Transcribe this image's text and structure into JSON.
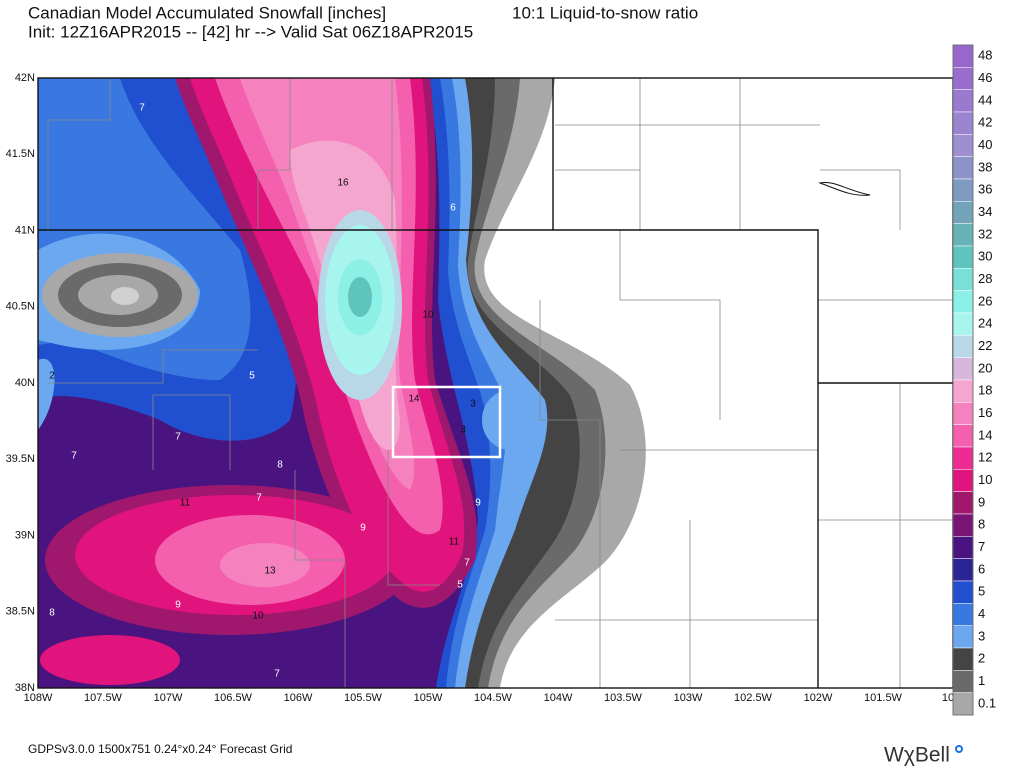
{
  "header": {
    "title": "Canadian Model Accumulated Snowfall [inches]",
    "ratio": "10:1 Liquid-to-snow ratio",
    "init": "Init: 12Z16APR2015 -- [42] hr --> Valid Sat 06Z18APR2015"
  },
  "map": {
    "lat_labels": [
      "42N",
      "41.5N",
      "41N",
      "40.5N",
      "40N",
      "39.5N",
      "39N",
      "38.5N",
      "38N"
    ],
    "lon_labels": [
      "108W",
      "107.5W",
      "107W",
      "106.5W",
      "106W",
      "105.5W",
      "105W",
      "104.5W",
      "104W",
      "103.5W",
      "103W",
      "102.5W",
      "102W",
      "101.5W",
      "10"
    ],
    "contour_labels": [
      "7",
      "16",
      "6",
      "10",
      "2",
      "5",
      "14",
      "3",
      "3",
      "7",
      "7",
      "8",
      "7",
      "11",
      "9",
      "9",
      "11",
      "13",
      "7",
      "5",
      "9",
      "8",
      "10",
      "7"
    ]
  },
  "colorbar": {
    "labels": [
      "48",
      "46",
      "44",
      "42",
      "40",
      "38",
      "36",
      "34",
      "32",
      "30",
      "28",
      "26",
      "24",
      "22",
      "20",
      "18",
      "16",
      "14",
      "12",
      "10",
      "9",
      "8",
      "7",
      "6",
      "5",
      "4",
      "3",
      "2",
      "1",
      "0.1"
    ]
  },
  "footer": {
    "grid": "GDPSv3.0.0 1500x751 0.24°x0.24° Forecast Grid",
    "logo": "WχBell"
  }
}
